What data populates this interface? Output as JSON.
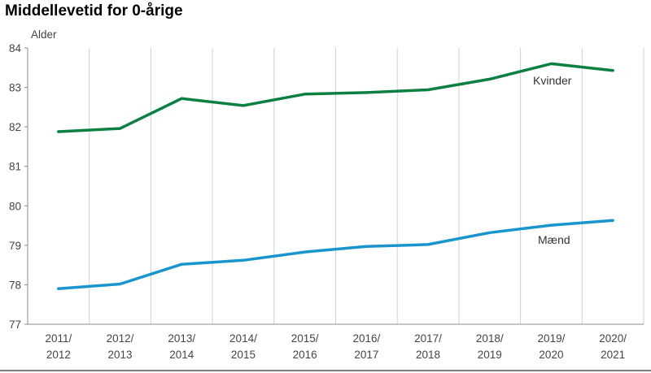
{
  "chart_data": {
    "type": "line",
    "title": "Middellevetid for 0-årige",
    "ylabel": "Alder",
    "xlabel": "",
    "ylim": [
      77,
      84
    ],
    "yticks": [
      "77",
      "78",
      "79",
      "80",
      "81",
      "82",
      "83",
      "84"
    ],
    "categories": [
      [
        "2011/",
        "2012"
      ],
      [
        "2012/",
        "2013"
      ],
      [
        "2013/",
        "2014"
      ],
      [
        "2014/",
        "2015"
      ],
      [
        "2015/",
        "2016"
      ],
      [
        "2016/",
        "2017"
      ],
      [
        "2017/",
        "2018"
      ],
      [
        "2018/",
        "2019"
      ],
      [
        "2019/",
        "2020"
      ],
      [
        "2020/",
        "2021"
      ]
    ],
    "grid": "vertical",
    "series": [
      {
        "name": "Kvinder",
        "color": "#0c8040",
        "values": [
          81.88,
          81.96,
          82.72,
          82.54,
          82.83,
          82.87,
          82.94,
          83.21,
          83.6,
          83.43
        ]
      },
      {
        "name": "Mænd",
        "color": "#1995cd",
        "values": [
          77.9,
          78.02,
          78.52,
          78.62,
          78.83,
          78.97,
          79.02,
          79.32,
          79.51,
          79.63
        ]
      }
    ]
  }
}
